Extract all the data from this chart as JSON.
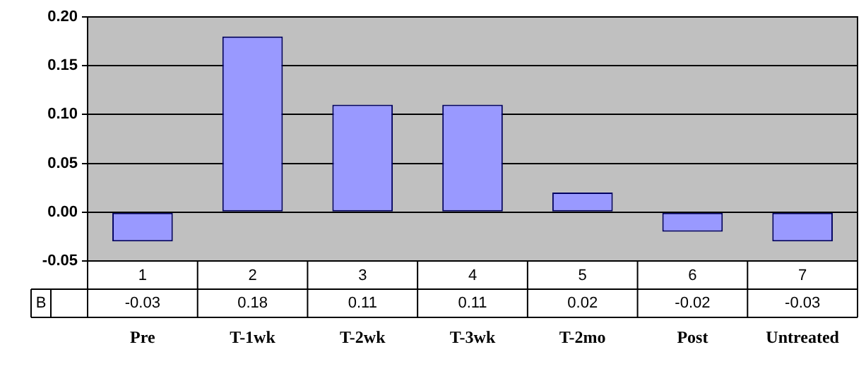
{
  "chart_data": {
    "type": "bar",
    "categories": [
      "1",
      "2",
      "3",
      "4",
      "5",
      "6",
      "7"
    ],
    "series": [
      {
        "name": "B",
        "color": "#9999ff",
        "values": [
          -0.03,
          0.18,
          0.11,
          0.11,
          0.02,
          -0.02,
          -0.03
        ]
      }
    ],
    "ylim": [
      -0.05,
      0.2
    ],
    "yticks": [
      {
        "value": -0.05,
        "label": "-0.05"
      },
      {
        "value": 0,
        "label": "0.00"
      },
      {
        "value": 0.05,
        "label": "0.05"
      },
      {
        "value": 0.1,
        "label": "0.10"
      },
      {
        "value": 0.15,
        "label": "0.15"
      },
      {
        "value": 0.2,
        "label": "0.20"
      }
    ],
    "grid": "y",
    "legend": false,
    "data_labels": true,
    "annotations": [
      "Pre",
      "T-1wk",
      "T-2wk",
      "T-3wk",
      "T-2mo",
      "Post",
      "Untreated"
    ]
  }
}
